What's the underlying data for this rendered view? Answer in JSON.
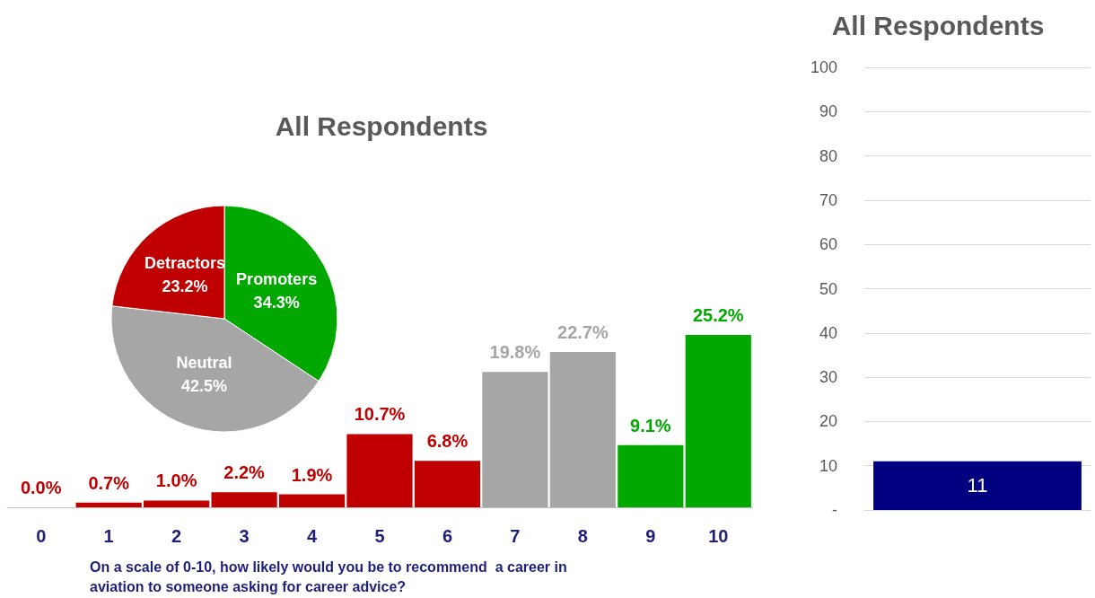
{
  "chart_data": [
    {
      "type": "bar",
      "title": "All Respondents",
      "xlabel": "On a scale of 0-10, how likely would you be to recommend  a career in aviation to someone asking for career advice?",
      "categories": [
        "0",
        "1",
        "2",
        "3",
        "4",
        "5",
        "6",
        "7",
        "8",
        "9",
        "10"
      ],
      "values": [
        0.0,
        0.7,
        1.0,
        2.2,
        1.9,
        10.7,
        6.8,
        19.8,
        22.7,
        9.1,
        25.2
      ],
      "value_labels": [
        "0.0%",
        "0.7%",
        "1.0%",
        "2.2%",
        "1.9%",
        "10.7%",
        "6.8%",
        "19.8%",
        "22.7%",
        "9.1%",
        "25.2%"
      ],
      "colors": [
        "#c00000",
        "#c00000",
        "#c00000",
        "#c00000",
        "#c00000",
        "#c00000",
        "#c00000",
        "#a6a6a6",
        "#a6a6a6",
        "#00a800",
        "#00a800"
      ]
    },
    {
      "type": "pie",
      "categories": [
        "Promoters",
        "Neutral",
        "Detractors"
      ],
      "values": [
        34.3,
        42.5,
        23.2
      ],
      "value_labels": [
        "34.3%",
        "42.5%",
        "23.2%"
      ],
      "colors": [
        "#00a800",
        "#a6a6a6",
        "#c00000"
      ]
    },
    {
      "type": "bar",
      "title": "All Respondents",
      "categories": [
        null
      ],
      "values": [
        11
      ],
      "color": "#000080",
      "ylim": [
        0,
        100
      ],
      "yticks": [
        {
          "value": 0,
          "label": "-"
        },
        10,
        20,
        30,
        40,
        50,
        60,
        70,
        80,
        90,
        100
      ],
      "grid": "y",
      "data_labels": true
    }
  ]
}
